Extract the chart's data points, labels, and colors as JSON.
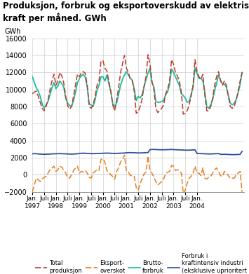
{
  "title": "Produksjon, forbruk og eksportoverskudd av elektrisk\nkraft per måned. GWh",
  "ylabel": "GWh",
  "ylim": [
    -2000,
    16000
  ],
  "yticks": [
    -2000,
    0,
    2000,
    4000,
    6000,
    8000,
    10000,
    12000,
    14000,
    16000
  ],
  "colors": {
    "total_prod": "#c0392b",
    "eksport": "#e67e22",
    "brutto": "#1abc9c",
    "forbruk": "#2c4f9c"
  },
  "total_produksjon": [
    9500,
    9700,
    9800,
    9200,
    8500,
    7800,
    7500,
    8000,
    8800,
    10000,
    11000,
    11800,
    10500,
    11000,
    12000,
    11600,
    10800,
    9200,
    8100,
    7700,
    8000,
    9200,
    10500,
    11800,
    11500,
    12000,
    12100,
    11900,
    10500,
    8000,
    7800,
    8200,
    9200,
    10500,
    11000,
    13300,
    13400,
    12500,
    12200,
    11000,
    9800,
    8200,
    7500,
    8800,
    10200,
    12000,
    13000,
    14000,
    12500,
    12000,
    11200,
    11000,
    9800,
    7200,
    7400,
    8000,
    8900,
    10400,
    11500,
    14100,
    13000,
    11000,
    10000,
    7800,
    7300,
    7500,
    7800,
    8200,
    9500,
    10000,
    11000,
    13500,
    13000,
    12000,
    11600,
    11000,
    9700,
    7100,
    7200,
    7500,
    8200,
    9200,
    10500,
    13500,
    12100,
    11500,
    11200,
    11800,
    9300,
    7500,
    7500,
    8000,
    9000,
    10500,
    11500,
    12100,
    11000,
    10500,
    11000,
    10500,
    9200,
    8000,
    7800,
    8000,
    8800,
    9800,
    11000,
    12000
  ],
  "eksport_overskudd": [
    -2000,
    -1200,
    -400,
    -600,
    -800,
    -500,
    -300,
    -200,
    200,
    600,
    800,
    1000,
    400,
    600,
    1000,
    900,
    500,
    200,
    -300,
    -400,
    0,
    500,
    800,
    1000,
    200,
    400,
    300,
    500,
    200,
    -300,
    -400,
    200,
    400,
    600,
    500,
    1800,
    1900,
    1500,
    500,
    300,
    0,
    -200,
    -500,
    400,
    800,
    1500,
    1800,
    2300,
    400,
    300,
    -100,
    -100,
    -200,
    -1500,
    -1800,
    -1000,
    -500,
    100,
    300,
    2200,
    500,
    200,
    -300,
    -800,
    -1200,
    -1000,
    -800,
    -500,
    100,
    300,
    400,
    1100,
    1000,
    500,
    600,
    500,
    200,
    -2200,
    -1800,
    -1000,
    -400,
    -200,
    200,
    1000,
    200,
    200,
    -100,
    800,
    -400,
    -500,
    -300,
    -200,
    200,
    600,
    800,
    400,
    -100,
    -200,
    400,
    200,
    -100,
    -400,
    -400,
    -400,
    0,
    200,
    400,
    -2000
  ],
  "brutto_forbruk": [
    11500,
    10800,
    10200,
    9800,
    9200,
    8300,
    7800,
    8200,
    8600,
    9400,
    10200,
    10800,
    10100,
    10400,
    11000,
    10700,
    10300,
    9000,
    8400,
    8100,
    8000,
    8700,
    9700,
    10800,
    11300,
    11600,
    11800,
    11400,
    10300,
    8300,
    8200,
    8000,
    8800,
    9900,
    10500,
    11500,
    11500,
    11000,
    11700,
    10700,
    9800,
    8400,
    8000,
    8400,
    9400,
    10500,
    11200,
    11700,
    12100,
    11700,
    11300,
    11100,
    10000,
    8700,
    9200,
    9000,
    9400,
    10300,
    11200,
    11900,
    12500,
    10800,
    10300,
    8600,
    8500,
    8500,
    8600,
    8700,
    9400,
    9700,
    10600,
    12400,
    12000,
    11500,
    11000,
    10500,
    9500,
    9300,
    9000,
    8500,
    8600,
    9400,
    10300,
    12500,
    11900,
    11300,
    11300,
    11000,
    9700,
    8000,
    7800,
    8200,
    8800,
    9900,
    10700,
    11700,
    11100,
    10700,
    10600,
    10300,
    9300,
    8400,
    8200,
    8400,
    8800,
    9600,
    10600,
    12000
  ],
  "forbruk_industri": [
    2450,
    2480,
    2460,
    2440,
    2430,
    2410,
    2400,
    2410,
    2420,
    2430,
    2450,
    2460,
    2460,
    2470,
    2480,
    2470,
    2460,
    2450,
    2440,
    2430,
    2420,
    2430,
    2450,
    2460,
    2500,
    2520,
    2530,
    2520,
    2500,
    2490,
    2480,
    2470,
    2480,
    2490,
    2500,
    2510,
    2520,
    2530,
    2540,
    2530,
    2520,
    2510,
    2500,
    2510,
    2520,
    2530,
    2540,
    2550,
    2580,
    2590,
    2600,
    2590,
    2580,
    2570,
    2560,
    2560,
    2570,
    2580,
    2590,
    2600,
    2950,
    2960,
    2970,
    2960,
    2950,
    2940,
    2930,
    2930,
    2940,
    2950,
    2960,
    2970,
    2950,
    2940,
    2930,
    2920,
    2910,
    2900,
    2890,
    2880,
    2890,
    2900,
    2910,
    2920,
    2500,
    2490,
    2480,
    2470,
    2460,
    2450,
    2440,
    2440,
    2450,
    2460,
    2470,
    2480,
    2400,
    2390,
    2400,
    2390,
    2380,
    2370,
    2360,
    2360,
    2370,
    2380,
    2390,
    2750
  ],
  "legend_labels": [
    "Total\nproduksjon",
    "Eksport-\noverskot",
    "Brutto-\nforbruk",
    "Forbruk i\nkraftintensiv industri\n(eksklusive uprioritert\nkraft til elektrokjelar)"
  ],
  "x_jan_labels": [
    "Jan.\n1997",
    "Jan.\n1998",
    "Jan.\n1999",
    "Jan.\n2000",
    "Jan.\n2001",
    "Jan.\n2002",
    "Jan.\n2003",
    "Jan.\n2004"
  ],
  "x_jul_label": "Juli",
  "zero_line_color": "#aaaaaa"
}
